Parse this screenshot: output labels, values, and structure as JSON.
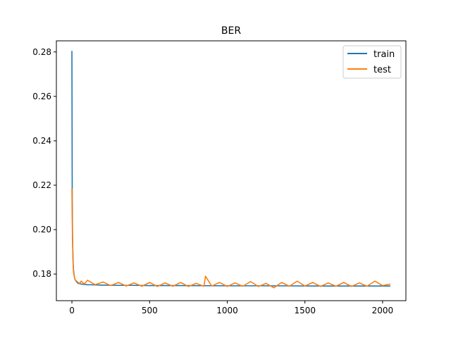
{
  "chart_data": {
    "type": "line",
    "title": "BER",
    "xlabel": "",
    "ylabel": "",
    "xlim": [
      -100,
      2150
    ],
    "ylim": [
      0.168,
      0.285
    ],
    "x_ticks": [
      0,
      500,
      1000,
      1500,
      2000
    ],
    "x_tick_labels": [
      "0",
      "500",
      "1000",
      "1500",
      "2000"
    ],
    "y_ticks": [
      0.18,
      0.2,
      0.22,
      0.24,
      0.26,
      0.28
    ],
    "y_tick_labels": [
      "0.18",
      "0.20",
      "0.22",
      "0.24",
      "0.26",
      "0.28"
    ],
    "grid": false,
    "legend_position": "top-right",
    "series": [
      {
        "name": "train",
        "color": "#1f77b4",
        "x": [
          0,
          2,
          4,
          6,
          8,
          10,
          15,
          20,
          30,
          40,
          60,
          80,
          100,
          150,
          200,
          300,
          400,
          500,
          700,
          1000,
          1300,
          1600,
          1900,
          2050
        ],
        "values": [
          0.2805,
          0.215,
          0.198,
          0.19,
          0.185,
          0.182,
          0.179,
          0.1775,
          0.1765,
          0.1758,
          0.1755,
          0.1753,
          0.1752,
          0.1751,
          0.175,
          0.1749,
          0.1749,
          0.1748,
          0.1748,
          0.1747,
          0.1747,
          0.1746,
          0.1746,
          0.1746
        ]
      },
      {
        "name": "test",
        "color": "#ff7f0e",
        "x": [
          0,
          2,
          4,
          6,
          8,
          10,
          15,
          20,
          30,
          40,
          50,
          60,
          80,
          100,
          150,
          200,
          250,
          300,
          350,
          400,
          450,
          500,
          550,
          600,
          650,
          700,
          750,
          800,
          850,
          860,
          900,
          950,
          1000,
          1050,
          1100,
          1150,
          1200,
          1250,
          1300,
          1350,
          1400,
          1450,
          1500,
          1550,
          1600,
          1650,
          1700,
          1750,
          1800,
          1850,
          1900,
          1950,
          2000,
          2050
        ],
        "values": [
          0.2185,
          0.205,
          0.195,
          0.188,
          0.184,
          0.181,
          0.179,
          0.1775,
          0.1768,
          0.1762,
          0.1758,
          0.1768,
          0.1755,
          0.1772,
          0.1752,
          0.1764,
          0.1748,
          0.1762,
          0.1746,
          0.176,
          0.1745,
          0.1762,
          0.1744,
          0.176,
          0.1745,
          0.1762,
          0.1744,
          0.1758,
          0.1745,
          0.179,
          0.1746,
          0.1762,
          0.1744,
          0.176,
          0.1745,
          0.1766,
          0.1744,
          0.1758,
          0.1738,
          0.1762,
          0.1745,
          0.1768,
          0.1746,
          0.1762,
          0.1744,
          0.176,
          0.1745,
          0.1762,
          0.1744,
          0.176,
          0.1745,
          0.1768,
          0.1748,
          0.1755
        ]
      }
    ]
  }
}
